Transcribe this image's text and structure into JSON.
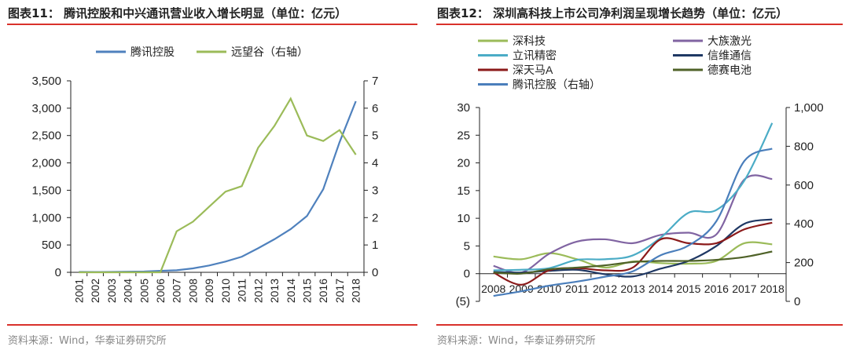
{
  "figures": [
    {
      "title": "图表11：  腾讯控股和中兴通讯营业收入增长明显（单位：亿元）",
      "source": "资料来源：Wind，华泰证券研究所"
    },
    {
      "title": "图表12：  深圳高科技上市公司净利润呈现增长趋势（单位：亿元）",
      "source": "资料来源：Wind，华泰证券研究所"
    }
  ],
  "chart_data": [
    {
      "type": "line",
      "categories": [
        "2001",
        "2002",
        "2003",
        "2004",
        "2005",
        "2006",
        "2007",
        "2008",
        "2009",
        "2010",
        "2011",
        "2012",
        "2013",
        "2014",
        "2015",
        "2016",
        "2017",
        "2018"
      ],
      "ylim": [
        0,
        3500
      ],
      "yticks": [
        "0",
        "500",
        "1,000",
        "1,500",
        "2,000",
        "2,500",
        "3,000",
        "3,500"
      ],
      "y2lim": [
        0,
        7
      ],
      "y2ticks": [
        "0",
        "1",
        "2",
        "3",
        "4",
        "5",
        "6",
        "7"
      ],
      "legend": "top",
      "grid": false,
      "series": [
        {
          "name": "腾讯控股",
          "axis": "left",
          "color": "#4F81BD",
          "values": [
            7,
            5,
            7,
            11,
            14,
            28,
            38,
            72,
            124,
            196,
            285,
            439,
            604,
            789,
            1029,
            1519,
            2377,
            3127
          ]
        },
        {
          "name": "远望谷（右轴）",
          "axis": "right",
          "color": "#9BBB59",
          "values": [
            0,
            0,
            0,
            0,
            0,
            0,
            1.5,
            1.85,
            2.4,
            2.95,
            3.15,
            4.55,
            5.35,
            6.35,
            5.0,
            4.8,
            5.2,
            4.3
          ]
        }
      ]
    },
    {
      "type": "line",
      "smooth": true,
      "categories": [
        "2008",
        "2009",
        "2010",
        "2011",
        "2012",
        "2013",
        "2014",
        "2015",
        "2016",
        "2017",
        "2018"
      ],
      "ylim": [
        -5,
        30
      ],
      "yticks": [
        "(5)",
        "0",
        "5",
        "10",
        "15",
        "20",
        "25",
        "30"
      ],
      "y2lim": [
        0,
        1000
      ],
      "y2ticks": [
        "0",
        "200",
        "400",
        "600",
        "800",
        "1,000"
      ],
      "legend": "top",
      "grid": false,
      "series": [
        {
          "name": "深科技",
          "axis": "left",
          "color": "#9BBB59",
          "values": [
            3.1,
            2.6,
            3.7,
            2.6,
            1.1,
            2.2,
            1.9,
            1.8,
            2.3,
            5.5,
            5.3
          ]
        },
        {
          "name": "大族激光",
          "axis": "left",
          "color": "#8064A2",
          "values": [
            1.4,
            0.2,
            3.6,
            5.8,
            6.2,
            5.5,
            7.0,
            7.4,
            7.1,
            17.0,
            17.1
          ]
        },
        {
          "name": "立讯精密",
          "axis": "left",
          "color": "#4BACC6",
          "values": [
            0.6,
            0.7,
            1.0,
            2.5,
            2.6,
            3.3,
            6.5,
            11.0,
            11.5,
            16.8,
            27.2
          ]
        },
        {
          "name": "信维通信",
          "axis": "left",
          "color": "#1F3864",
          "values": [
            0.3,
            0.2,
            0.5,
            0.7,
            -0.1,
            -0.5,
            0.9,
            2.3,
            5.0,
            9.0,
            9.8
          ]
        },
        {
          "name": "深天马A",
          "axis": "left",
          "color": "#8B1A1A",
          "values": [
            0.2,
            -2.0,
            0.6,
            1.0,
            0.6,
            1.1,
            6.2,
            5.5,
            5.5,
            8.0,
            9.2
          ]
        },
        {
          "name": "德赛电池",
          "axis": "left",
          "color": "#4F6228",
          "values": [
            0.2,
            0.0,
            0.8,
            1.1,
            1.5,
            2.1,
            2.3,
            2.3,
            2.5,
            3.0,
            4.0
          ]
        },
        {
          "name": "腾讯控股（右轴）",
          "axis": "right",
          "color": "#4A7EBB",
          "values": [
            28,
            52,
            81,
            102,
            127,
            155,
            238,
            288,
            414,
            724,
            788
          ]
        }
      ]
    }
  ]
}
